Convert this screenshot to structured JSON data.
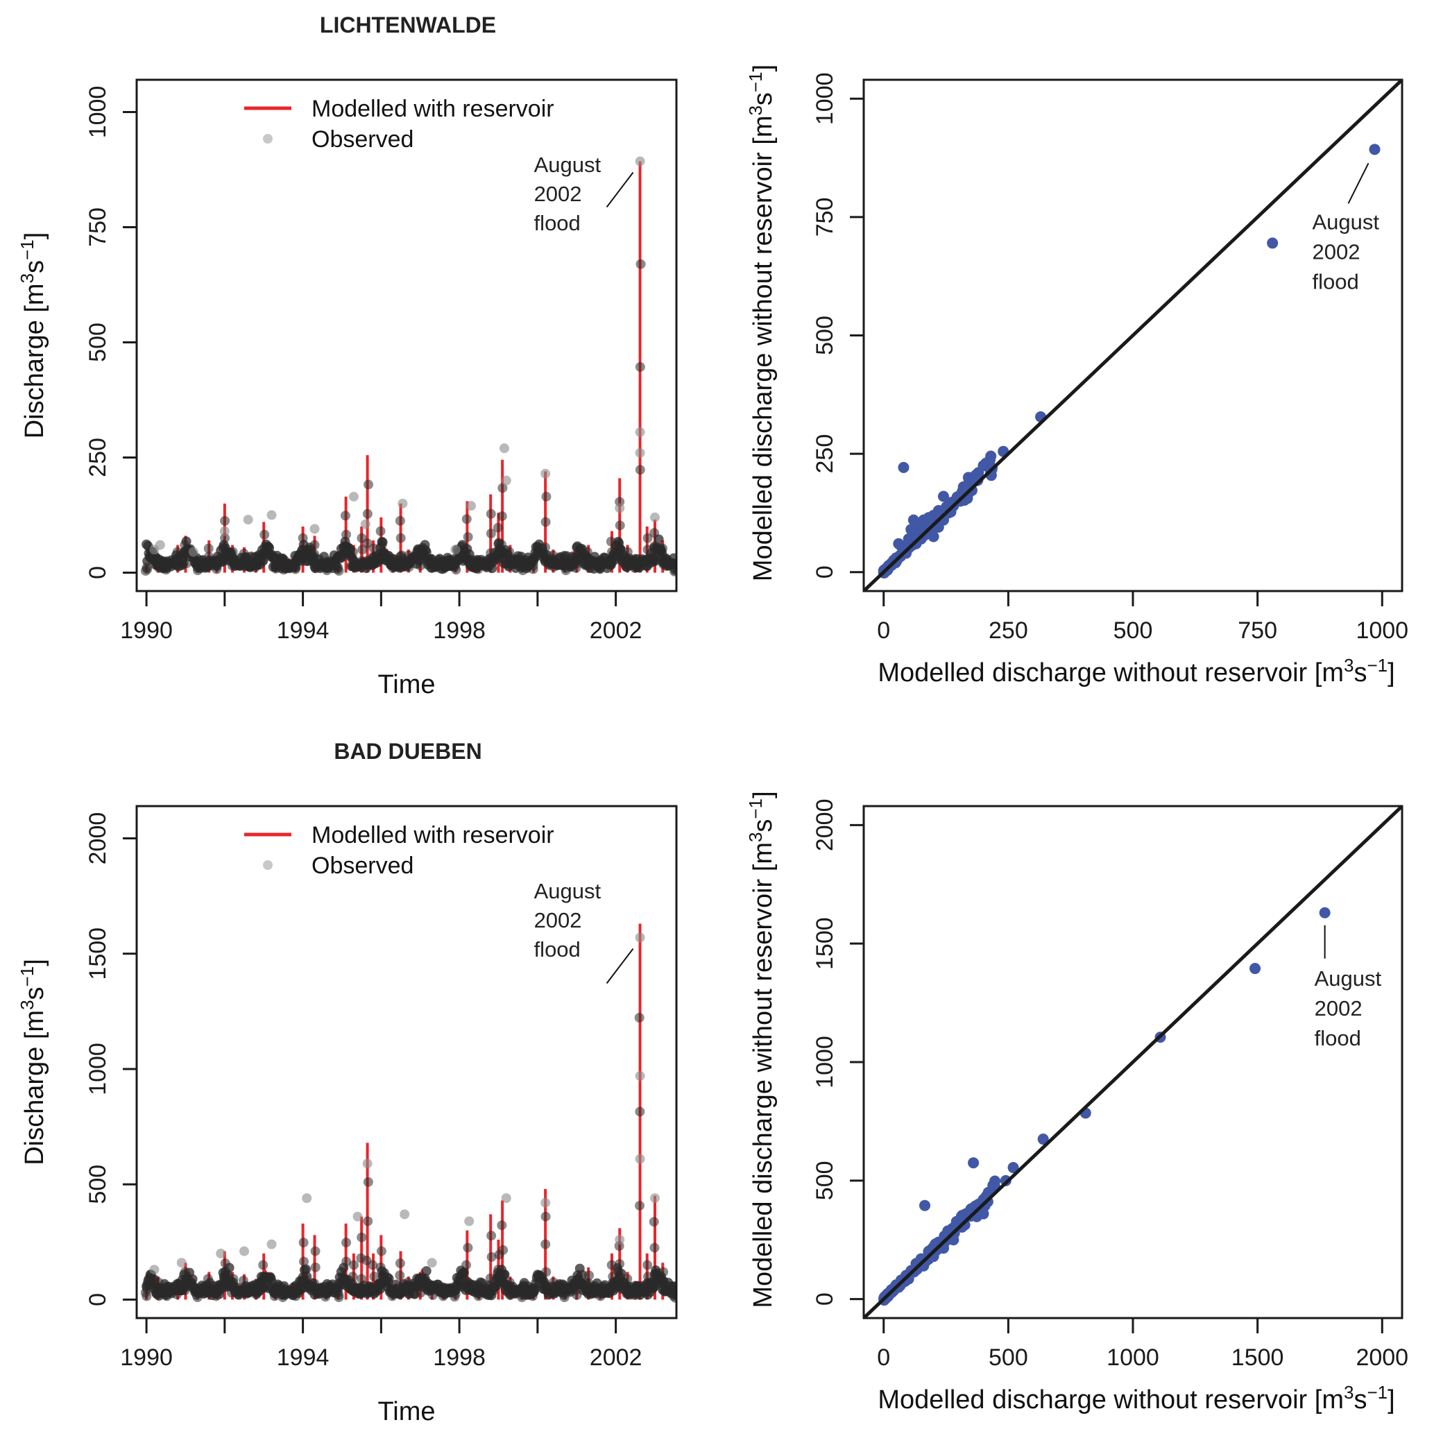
{
  "colors": {
    "modelled": "#e8262b",
    "observed": "#2a2a2a",
    "observed_legend": "#c8c8c8",
    "scatter": "#4158a6",
    "line": "#1a1a1a"
  },
  "chart_data": [
    {
      "id": "lichtenwalde_ts",
      "type": "line",
      "title": "LICHTENWALDE",
      "xlabel": "Time",
      "ylabel": "Discharge [m³s⁻¹]",
      "xlim": [
        1989.75,
        2003.55
      ],
      "ylim": [
        -40,
        1070
      ],
      "xticks": [
        1990,
        1992,
        1994,
        1996,
        1998,
        2000,
        2002
      ],
      "xticklabels": [
        "1990",
        "",
        "1994",
        "",
        "1998",
        "",
        "2002"
      ],
      "yticks": [
        0,
        250,
        500,
        750,
        1000
      ],
      "yticklabels": [
        "0",
        "250",
        "500",
        "750",
        "1000"
      ],
      "legend": {
        "position": "top-center",
        "entries": [
          "Modelled with reservoir",
          "Observed"
        ]
      },
      "annotation": {
        "text": [
          "August",
          "2002",
          "flood"
        ],
        "x": 2002.62,
        "y": 893
      },
      "series": [
        {
          "name": "Modelled with reservoir",
          "x": [
            1990.0,
            1990.3,
            1990.5,
            1990.8,
            1991.0,
            1991.3,
            1991.6,
            1991.8,
            1992.0,
            1992.2,
            1992.5,
            1992.8,
            1993.0,
            1993.3,
            1993.5,
            1993.8,
            1994.0,
            1994.3,
            1994.6,
            1994.9,
            1995.1,
            1995.3,
            1995.5,
            1995.65,
            1995.8,
            1996.0,
            1996.3,
            1996.5,
            1996.7,
            1997.0,
            1997.3,
            1997.6,
            1997.9,
            1998.2,
            1998.5,
            1998.8,
            1999.0,
            1999.1,
            1999.3,
            1999.6,
            1999.9,
            2000.2,
            2000.4,
            2000.7,
            2001.0,
            2001.3,
            2001.6,
            2001.9,
            2002.1,
            2002.3,
            2002.5,
            2002.62,
            2002.8,
            2003.0,
            2003.2,
            2003.5
          ],
          "y": [
            15,
            40,
            25,
            60,
            80,
            20,
            70,
            30,
            150,
            60,
            55,
            45,
            110,
            35,
            25,
            30,
            100,
            80,
            20,
            15,
            165,
            60,
            100,
            255,
            70,
            120,
            40,
            150,
            50,
            60,
            40,
            30,
            25,
            155,
            30,
            170,
            130,
            245,
            60,
            20,
            30,
            220,
            50,
            20,
            40,
            60,
            30,
            90,
            205,
            60,
            40,
            893,
            100,
            115,
            70,
            10
          ]
        },
        {
          "name": "Observed",
          "x": [
            1990.2,
            1990.35,
            1991.2,
            1992.0,
            1992.6,
            1993.2,
            1994.3,
            1995.3,
            1995.6,
            1996.55,
            1997.9,
            1998.3,
            1999.15,
            1999.2,
            2000.2,
            2002.1,
            2002.62,
            2002.62,
            2002.62,
            2003.0
          ],
          "y": [
            50,
            60,
            45,
            90,
            115,
            125,
            95,
            165,
            105,
            150,
            50,
            145,
            270,
            200,
            215,
            140,
            893,
            305,
            260,
            120
          ]
        }
      ]
    },
    {
      "id": "lichtenwalde_scatter",
      "type": "scatter",
      "xlabel": "Modelled discharge without reservoir [m³s⁻¹]",
      "ylabel": "Modelled discharge without reservoir [m³s⁻¹]",
      "xlim": [
        -40,
        1040
      ],
      "ylim": [
        -40,
        1040
      ],
      "xticks": [
        0,
        250,
        500,
        750,
        1000
      ],
      "yticks": [
        0,
        250,
        500,
        750,
        1000
      ],
      "reference_line": "y = x",
      "annotation": {
        "text": [
          "August",
          "2002",
          "flood"
        ],
        "x": 985,
        "y": 893
      },
      "points": [
        [
          985,
          893
        ],
        [
          780,
          695
        ],
        [
          315,
          328
        ],
        [
          240,
          255
        ],
        [
          215,
          245
        ],
        [
          200,
          225
        ],
        [
          190,
          210
        ],
        [
          175,
          190
        ],
        [
          160,
          180
        ],
        [
          150,
          160
        ],
        [
          120,
          160
        ],
        [
          110,
          130
        ],
        [
          100,
          120
        ],
        [
          90,
          115
        ],
        [
          80,
          110
        ],
        [
          70,
          100
        ],
        [
          60,
          110
        ],
        [
          55,
          90
        ],
        [
          50,
          70
        ],
        [
          40,
          221
        ],
        [
          35,
          55
        ],
        [
          30,
          60
        ],
        [
          25,
          30
        ],
        [
          20,
          25
        ],
        [
          15,
          15
        ],
        [
          10,
          10
        ],
        [
          5,
          5
        ],
        [
          140,
          140
        ],
        [
          130,
          125
        ],
        [
          95,
          90
        ],
        [
          85,
          80
        ],
        [
          75,
          70
        ],
        [
          65,
          60
        ],
        [
          45,
          40
        ],
        [
          120,
          110
        ],
        [
          100,
          75
        ],
        [
          110,
          95
        ],
        [
          170,
          200
        ],
        [
          185,
          205
        ],
        [
          205,
          230
        ]
      ]
    },
    {
      "id": "bad_dueben_ts",
      "type": "line",
      "title": "BAD DUEBEN",
      "xlabel": "Time",
      "ylabel": "Discharge [m³s⁻¹]",
      "xlim": [
        1989.75,
        2003.55
      ],
      "ylim": [
        -80,
        2140
      ],
      "xticks": [
        1990,
        1992,
        1994,
        1996,
        1998,
        2000,
        2002
      ],
      "xticklabels": [
        "1990",
        "",
        "1994",
        "",
        "1998",
        "",
        "2002"
      ],
      "yticks": [
        0,
        500,
        1000,
        1500,
        2000
      ],
      "yticklabels": [
        "0",
        "500",
        "1000",
        "1500",
        "2000"
      ],
      "legend": {
        "position": "top-center",
        "entries": [
          "Modelled with reservoir",
          "Observed"
        ]
      },
      "annotation": {
        "text": [
          "August",
          "2002",
          "flood"
        ],
        "x": 2002.62,
        "y": 1570
      },
      "series": [
        {
          "name": "Modelled with reservoir",
          "x": [
            1990.0,
            1990.3,
            1990.5,
            1990.8,
            1991.0,
            1991.3,
            1991.6,
            1991.8,
            1992.0,
            1992.2,
            1992.5,
            1992.8,
            1993.0,
            1993.3,
            1993.5,
            1993.8,
            1994.0,
            1994.3,
            1994.6,
            1994.9,
            1995.1,
            1995.3,
            1995.5,
            1995.65,
            1995.8,
            1996.0,
            1996.3,
            1996.5,
            1996.7,
            1997.0,
            1997.3,
            1997.6,
            1997.9,
            1998.2,
            1998.5,
            1998.8,
            1999.0,
            1999.1,
            1999.3,
            1999.6,
            1999.9,
            2000.2,
            2000.4,
            2000.7,
            2001.0,
            2001.3,
            2001.6,
            2001.9,
            2002.1,
            2002.3,
            2002.5,
            2002.62,
            2002.8,
            2003.0,
            2003.2,
            2003.5
          ],
          "y": [
            60,
            100,
            60,
            90,
            160,
            40,
            120,
            60,
            210,
            120,
            110,
            90,
            200,
            60,
            40,
            60,
            330,
            280,
            50,
            40,
            330,
            200,
            360,
            680,
            200,
            280,
            60,
            210,
            100,
            120,
            80,
            60,
            50,
            300,
            60,
            370,
            260,
            430,
            100,
            40,
            60,
            480,
            100,
            40,
            80,
            140,
            60,
            200,
            310,
            120,
            80,
            1630,
            200,
            450,
            160,
            30
          ]
        },
        {
          "name": "Observed",
          "x": [
            1990.2,
            1990.9,
            1991.9,
            1992.5,
            1993.2,
            1994.1,
            1995.4,
            1995.65,
            1996.6,
            1997.3,
            1998.25,
            1999.2,
            2000.2,
            2002.1,
            2002.62,
            2002.62,
            2002.62,
            2003.0
          ],
          "y": [
            130,
            160,
            200,
            210,
            240,
            440,
            360,
            590,
            370,
            160,
            340,
            440,
            420,
            260,
            1570,
            970,
            610,
            440
          ]
        }
      ]
    },
    {
      "id": "bad_dueben_scatter",
      "type": "scatter",
      "xlabel": "Modelled discharge without reservoir [m³s⁻¹]",
      "ylabel": "Modelled discharge without reservoir [m³s⁻¹]",
      "xlim": [
        -80,
        2080
      ],
      "ylim": [
        -80,
        2080
      ],
      "xticks": [
        0,
        500,
        1000,
        1500,
        2000
      ],
      "yticks": [
        0,
        500,
        1000,
        1500,
        2000
      ],
      "reference_line": "y = x",
      "annotation": {
        "text": [
          "August",
          "2002",
          "flood"
        ],
        "x": 1770,
        "y": 1630
      },
      "points": [
        [
          1770,
          1630
        ],
        [
          1490,
          1395
        ],
        [
          1110,
          1105
        ],
        [
          810,
          785
        ],
        [
          640,
          675
        ],
        [
          520,
          555
        ],
        [
          490,
          500
        ],
        [
          440,
          475
        ],
        [
          420,
          450
        ],
        [
          400,
          420
        ],
        [
          380,
          400
        ],
        [
          360,
          575
        ],
        [
          350,
          380
        ],
        [
          330,
          360
        ],
        [
          300,
          330
        ],
        [
          280,
          300
        ],
        [
          260,
          280
        ],
        [
          240,
          250
        ],
        [
          220,
          240
        ],
        [
          200,
          220
        ],
        [
          180,
          200
        ],
        [
          165,
          395
        ],
        [
          150,
          170
        ],
        [
          130,
          150
        ],
        [
          110,
          120
        ],
        [
          90,
          100
        ],
        [
          70,
          80
        ],
        [
          50,
          60
        ],
        [
          30,
          35
        ],
        [
          15,
          20
        ],
        [
          400,
          360
        ],
        [
          320,
          310
        ],
        [
          240,
          215
        ],
        [
          160,
          140
        ],
        [
          100,
          85
        ],
        [
          60,
          50
        ],
        [
          280,
          250
        ],
        [
          200,
          180
        ]
      ]
    }
  ]
}
